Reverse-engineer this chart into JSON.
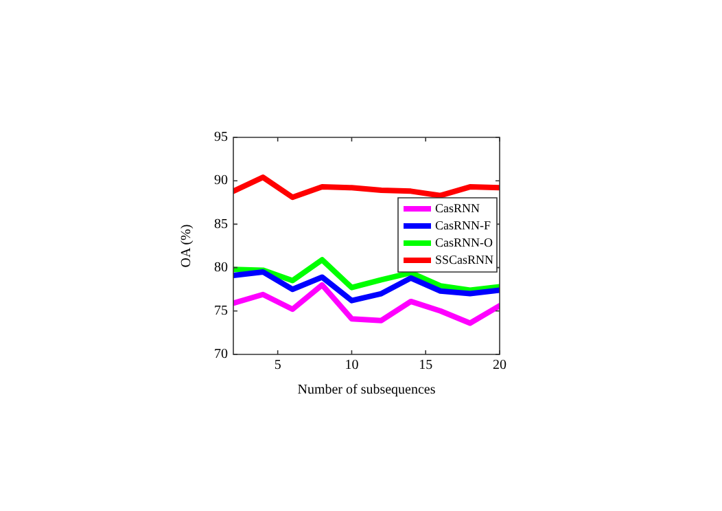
{
  "chart_data": {
    "type": "line",
    "xlabel": "Number of subsequences",
    "ylabel": "OA (%)",
    "x": [
      2,
      4,
      6,
      8,
      10,
      12,
      14,
      16,
      18,
      20
    ],
    "series": [
      {
        "name": "CasRNN",
        "color": "#ff00ff",
        "values": [
          75.9,
          76.9,
          75.2,
          78.0,
          74.1,
          73.9,
          76.1,
          75.0,
          73.6,
          75.6
        ]
      },
      {
        "name": "CasRNN-F",
        "color": "#0000ff",
        "values": [
          79.1,
          79.5,
          77.5,
          78.9,
          76.2,
          77.0,
          78.8,
          77.3,
          77.0,
          77.4
        ]
      },
      {
        "name": "CasRNN-O",
        "color": "#00ff00",
        "values": [
          79.8,
          79.7,
          78.5,
          80.9,
          77.7,
          78.6,
          79.4,
          77.9,
          77.4,
          77.8
        ]
      },
      {
        "name": "SSCasRNN",
        "color": "#ff0000",
        "values": [
          88.8,
          90.4,
          88.1,
          89.3,
          89.2,
          88.9,
          88.8,
          88.3,
          89.3,
          89.2
        ]
      }
    ],
    "xlim": [
      2,
      20
    ],
    "xticks": [
      5,
      10,
      15,
      20
    ],
    "ylim": [
      70,
      95
    ],
    "yticks": [
      70,
      75,
      80,
      85,
      90,
      95
    ],
    "grid": false,
    "legend": "right",
    "marker": "none",
    "line_style": "solid"
  }
}
